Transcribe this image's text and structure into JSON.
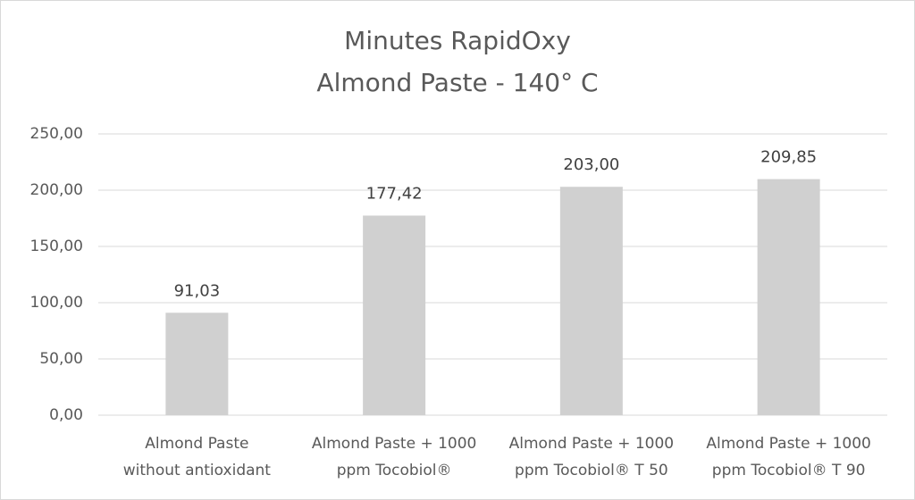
{
  "chart_data": {
    "type": "bar",
    "title": "Minutes RapidOxy",
    "subtitle": "Almond Paste - 140° C",
    "categories": [
      [
        "Almond Paste",
        "without antioxidant"
      ],
      [
        "Almond Paste + 1000",
        "ppm Tocobiol®"
      ],
      [
        "Almond Paste + 1000",
        "ppm Tocobiol® T 50"
      ],
      [
        "Almond Paste + 1000",
        "ppm Tocobiol® T 90"
      ]
    ],
    "values": [
      91.03,
      177.42,
      203.0,
      209.85
    ],
    "value_labels": [
      "91,03",
      "177,42",
      "203,00",
      "209,85"
    ],
    "color": "#d0d0d0",
    "ylim": [
      0,
      250
    ],
    "yticks": [
      {
        "value": 0,
        "label": "0,00"
      },
      {
        "value": 50,
        "label": "50,00"
      },
      {
        "value": 100,
        "label": "100,00"
      },
      {
        "value": 150,
        "label": "150,00"
      },
      {
        "value": 200,
        "label": "200,00"
      },
      {
        "value": 250,
        "label": "250,00"
      }
    ],
    "grid": true
  }
}
